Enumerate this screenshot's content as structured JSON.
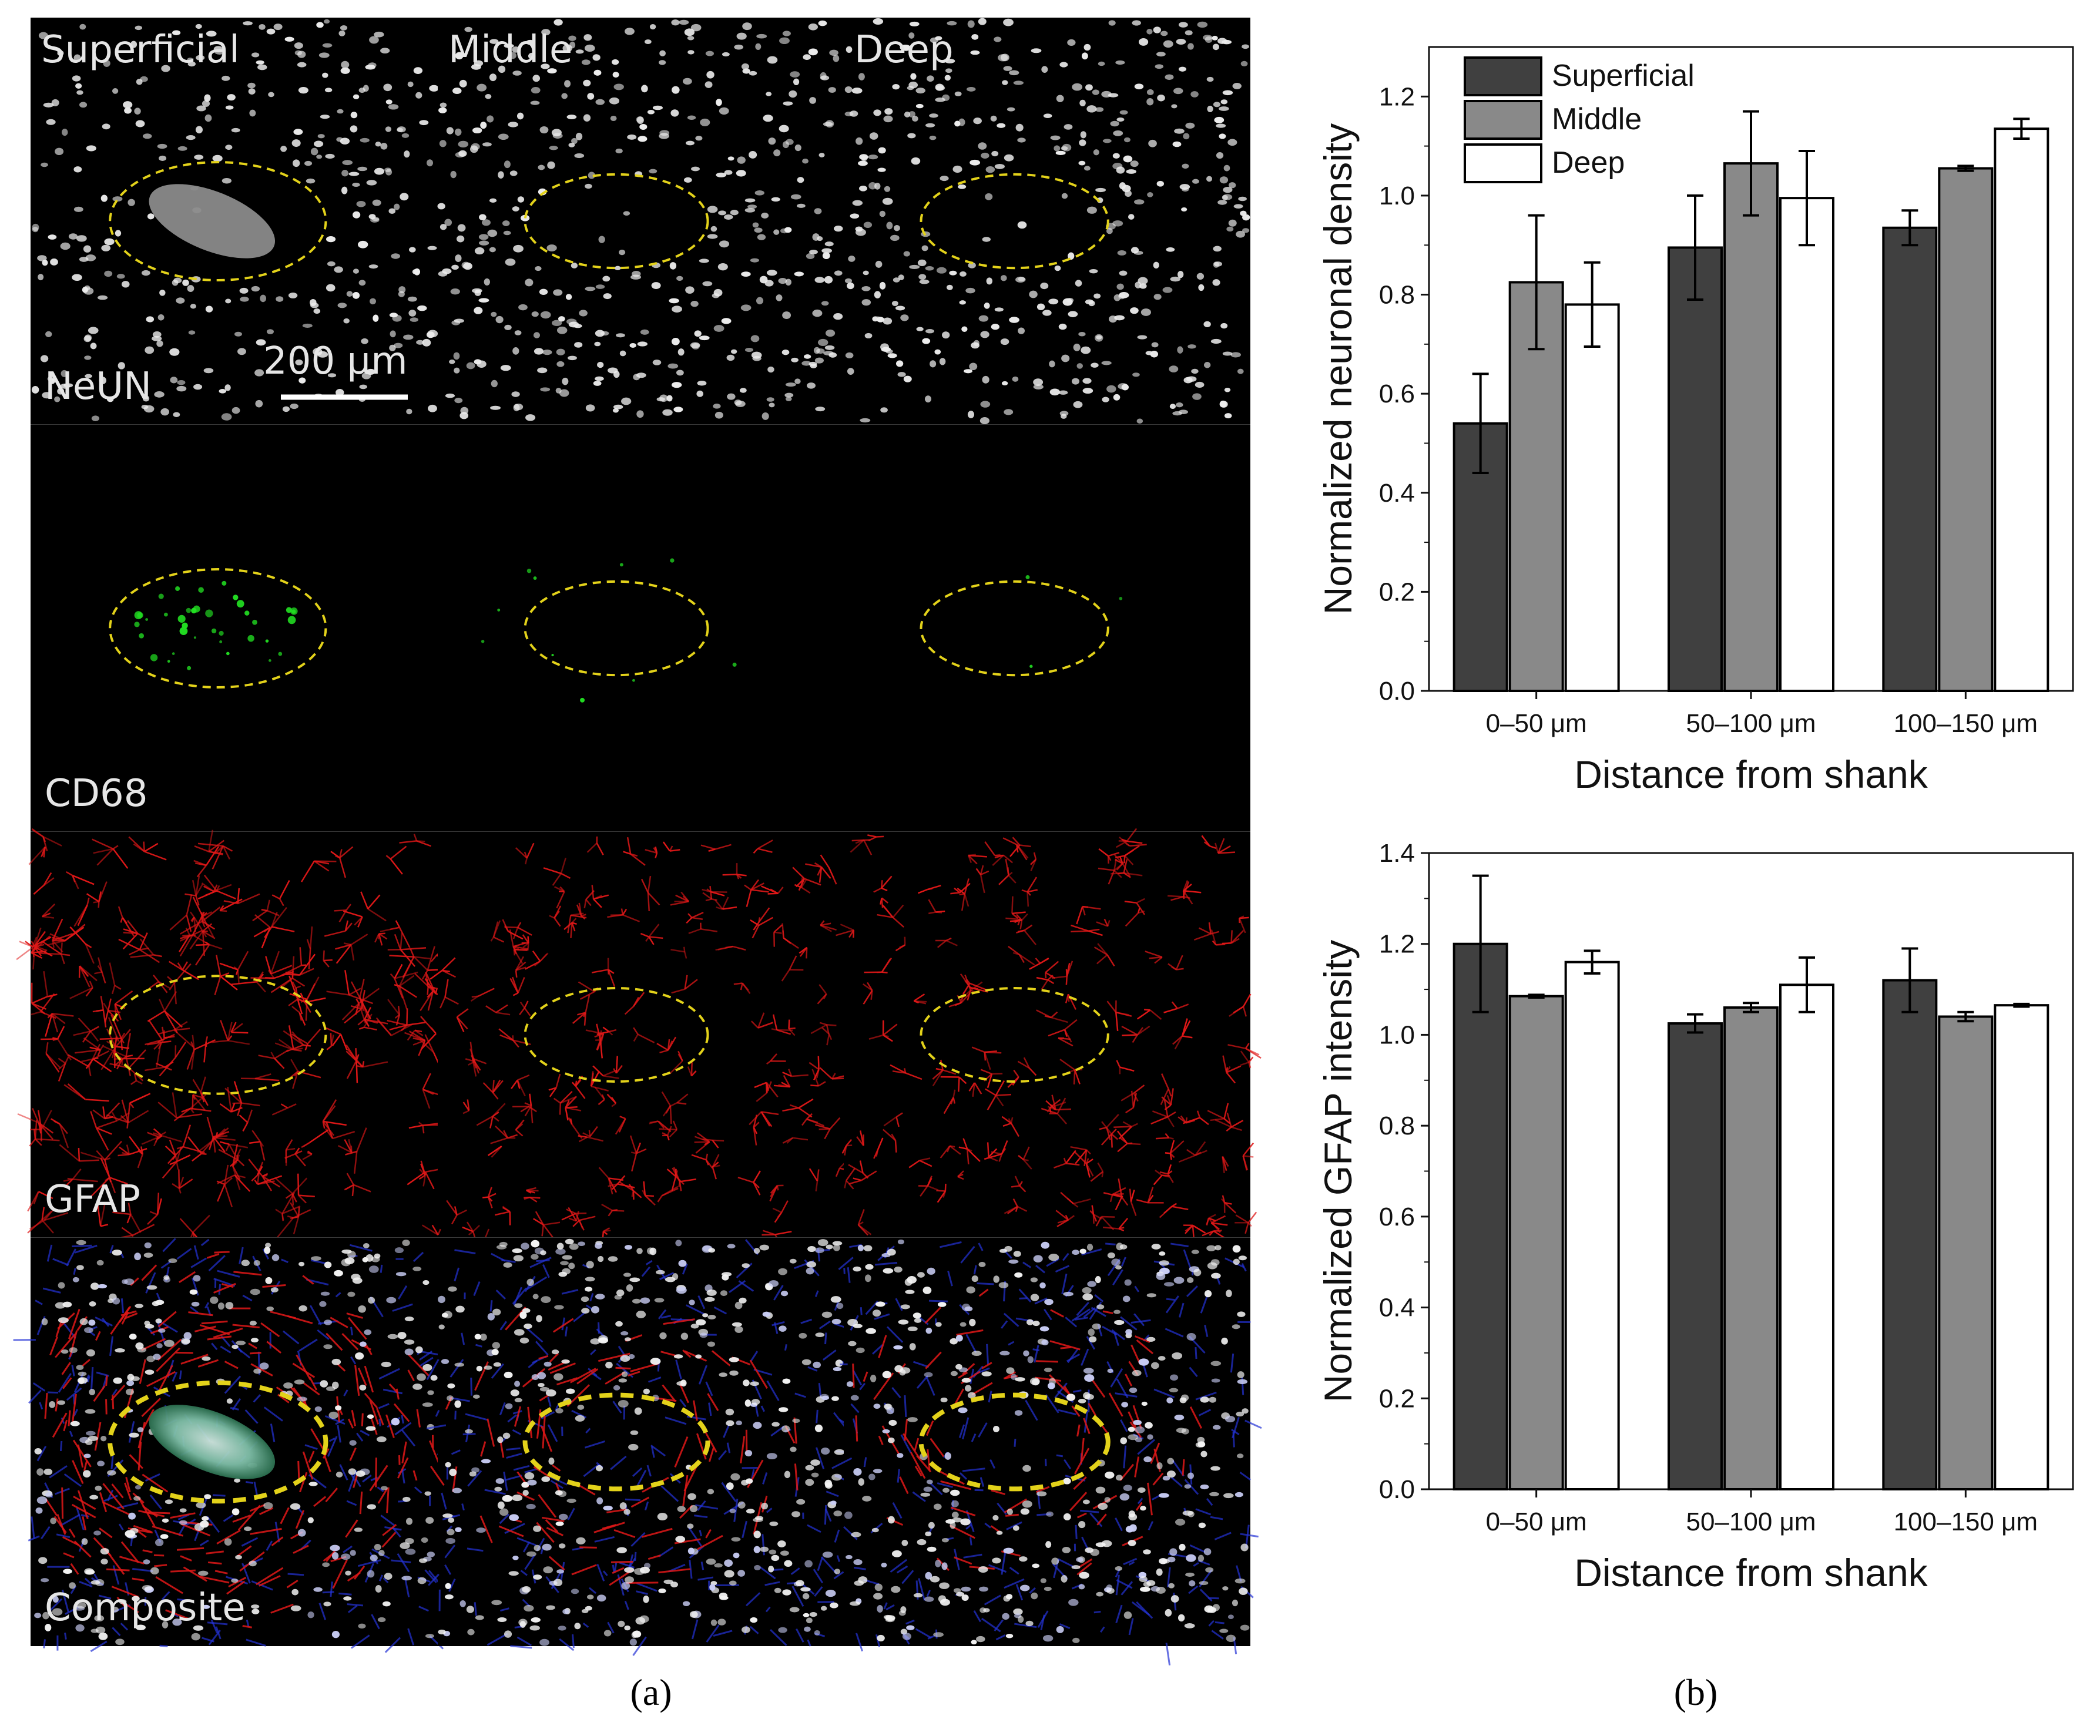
{
  "panel_a": {
    "label": "(a)",
    "columns": [
      "Superficial",
      "Middle",
      "Deep"
    ],
    "rows": [
      {
        "stain": "NeUN",
        "kind": "neun"
      },
      {
        "stain": "CD68",
        "kind": "cd68"
      },
      {
        "stain": "GFAP",
        "kind": "gfap"
      },
      {
        "stain": "Composite",
        "kind": "composite"
      }
    ],
    "scale_bar": "200 µm",
    "colors": {
      "neun": "#ffffff",
      "cd68": "#22e022",
      "gfap": "#e01818",
      "dapi": "#2433d6",
      "ellipse": "#e3d21a"
    }
  },
  "panel_b": {
    "label": "(b)"
  },
  "chart_data": [
    {
      "type": "bar",
      "categories": [
        "0–50 μm",
        "50–100 μm",
        "100–150 μm"
      ],
      "series": [
        {
          "name": "Superficial",
          "color": "#404040",
          "values": [
            0.54,
            0.895,
            0.935
          ],
          "errors": [
            0.1,
            0.105,
            0.035
          ]
        },
        {
          "name": "Middle",
          "color": "#898989",
          "values": [
            0.825,
            1.065,
            1.055
          ],
          "errors": [
            0.135,
            0.105,
            0.005
          ]
        },
        {
          "name": "Deep",
          "color": "#ffffff",
          "values": [
            0.78,
            0.995,
            1.135
          ],
          "errors": [
            0.085,
            0.095,
            0.02
          ]
        }
      ],
      "xlabel": "Distance from shank",
      "ylabel": "Normalized neuronal density",
      "ylim": [
        0,
        1.3
      ],
      "yticks": [
        "0.0",
        "0.2",
        "0.4",
        "0.6",
        "0.8",
        "1.0",
        "1.2"
      ],
      "legend": "top-left"
    },
    {
      "type": "bar",
      "categories": [
        "0–50 μm",
        "50–100 μm",
        "100–150 μm"
      ],
      "series": [
        {
          "name": "Superficial",
          "color": "#404040",
          "values": [
            1.2,
            1.025,
            1.12
          ],
          "errors": [
            0.15,
            0.02,
            0.07
          ]
        },
        {
          "name": "Middle",
          "color": "#898989",
          "values": [
            1.085,
            1.06,
            1.04
          ],
          "errors": [
            0.003,
            0.01,
            0.01
          ]
        },
        {
          "name": "Deep",
          "color": "#ffffff",
          "values": [
            1.16,
            1.11,
            1.065
          ],
          "errors": [
            0.025,
            0.06,
            0.003
          ]
        }
      ],
      "xlabel": "Distance from shank",
      "ylabel": "Normalized GFAP intensity",
      "ylim": [
        0,
        1.4
      ],
      "yticks": [
        "0.0",
        "0.2",
        "0.4",
        "0.6",
        "0.8",
        "1.0",
        "1.2",
        "1.4"
      ]
    }
  ]
}
